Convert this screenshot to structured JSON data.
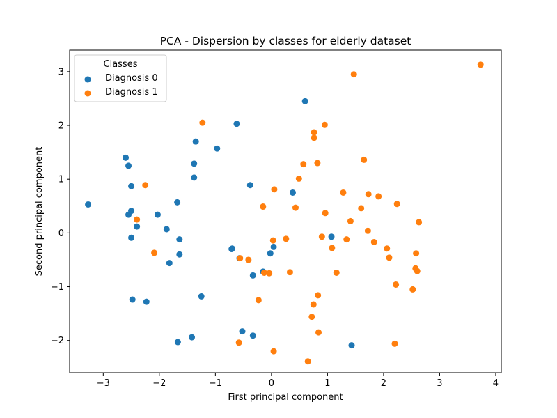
{
  "chart_data": {
    "type": "scatter",
    "title": "PCA - Dispersion by classes for elderly dataset",
    "xlabel": "First principal component",
    "ylabel": "Second principal component",
    "xlim": [
      -3.6,
      4.1
    ],
    "ylim": [
      -2.6,
      3.4
    ],
    "xticks": [
      -3,
      -2,
      -1,
      0,
      1,
      2,
      3,
      4
    ],
    "yticks": [
      -2,
      -1,
      0,
      1,
      2,
      3
    ],
    "grid": false,
    "legend": {
      "title": "Classes",
      "placement": "top-left"
    },
    "series": [
      {
        "name": "Diagnosis 0",
        "color": "#1f77b4",
        "points": [
          [
            -3.27,
            0.53
          ],
          [
            -2.6,
            1.4
          ],
          [
            -2.55,
            1.25
          ],
          [
            -2.5,
            0.87
          ],
          [
            -2.5,
            0.41
          ],
          [
            -2.55,
            0.34
          ],
          [
            -2.4,
            0.12
          ],
          [
            -2.5,
            -0.09
          ],
          [
            -2.48,
            -1.24
          ],
          [
            -2.23,
            -1.28
          ],
          [
            -2.03,
            0.34
          ],
          [
            -1.87,
            0.07
          ],
          [
            -1.82,
            -0.56
          ],
          [
            -1.68,
            0.57
          ],
          [
            -1.64,
            -0.12
          ],
          [
            -1.64,
            -0.4
          ],
          [
            -1.35,
            1.7
          ],
          [
            -1.38,
            1.29
          ],
          [
            -1.38,
            1.03
          ],
          [
            -1.25,
            -1.18
          ],
          [
            -0.97,
            1.57
          ],
          [
            -0.62,
            2.03
          ],
          [
            -0.7,
            -0.29
          ],
          [
            -0.57,
            -0.47
          ],
          [
            -0.38,
            0.89
          ],
          [
            -0.52,
            -1.83
          ],
          [
            -0.33,
            -0.79
          ],
          [
            -0.15,
            -0.72
          ],
          [
            -0.02,
            -0.38
          ],
          [
            0.04,
            -0.26
          ],
          [
            0.38,
            0.75
          ],
          [
            0.6,
            2.45
          ],
          [
            1.07,
            -0.07
          ],
          [
            1.43,
            -2.09
          ],
          [
            -1.67,
            -2.03
          ],
          [
            -1.42,
            -1.94
          ],
          [
            -0.33,
            -1.91
          ],
          [
            -0.71,
            -0.3
          ]
        ]
      },
      {
        "name": "Diagnosis 1",
        "color": "#ff7f0e",
        "points": [
          [
            3.73,
            3.13
          ],
          [
            1.47,
            2.95
          ],
          [
            -1.23,
            2.05
          ],
          [
            0.95,
            2.01
          ],
          [
            0.76,
            1.87
          ],
          [
            0.76,
            1.77
          ],
          [
            0.82,
            1.3
          ],
          [
            0.57,
            1.28
          ],
          [
            1.65,
            1.36
          ],
          [
            0.49,
            1.01
          ],
          [
            -2.25,
            0.89
          ],
          [
            0.05,
            0.81
          ],
          [
            1.28,
            0.75
          ],
          [
            1.73,
            0.72
          ],
          [
            1.91,
            0.68
          ],
          [
            -0.15,
            0.49
          ],
          [
            0.43,
            0.47
          ],
          [
            1.6,
            0.46
          ],
          [
            2.24,
            0.54
          ],
          [
            0.96,
            0.37
          ],
          [
            -2.4,
            0.25
          ],
          [
            1.41,
            0.22
          ],
          [
            2.63,
            0.2
          ],
          [
            1.72,
            0.04
          ],
          [
            0.9,
            -0.07
          ],
          [
            0.26,
            -0.11
          ],
          [
            0.03,
            -0.14
          ],
          [
            1.34,
            -0.12
          ],
          [
            1.83,
            -0.17
          ],
          [
            -2.09,
            -0.37
          ],
          [
            1.08,
            -0.28
          ],
          [
            2.06,
            -0.29
          ],
          [
            2.1,
            -0.46
          ],
          [
            2.58,
            -0.38
          ],
          [
            -0.56,
            -0.47
          ],
          [
            -0.41,
            -0.5
          ],
          [
            -0.13,
            -0.74
          ],
          [
            -0.04,
            -0.75
          ],
          [
            0.33,
            -0.73
          ],
          [
            1.16,
            -0.74
          ],
          [
            2.57,
            -0.66
          ],
          [
            2.6,
            -0.71
          ],
          [
            2.22,
            -0.96
          ],
          [
            2.52,
            -1.05
          ],
          [
            0.83,
            -1.16
          ],
          [
            -0.23,
            -1.25
          ],
          [
            0.75,
            -1.33
          ],
          [
            0.72,
            -1.56
          ],
          [
            0.84,
            -1.85
          ],
          [
            -0.58,
            -2.04
          ],
          [
            0.04,
            -2.2
          ],
          [
            2.2,
            -2.06
          ],
          [
            0.65,
            -2.39
          ]
        ]
      }
    ]
  }
}
